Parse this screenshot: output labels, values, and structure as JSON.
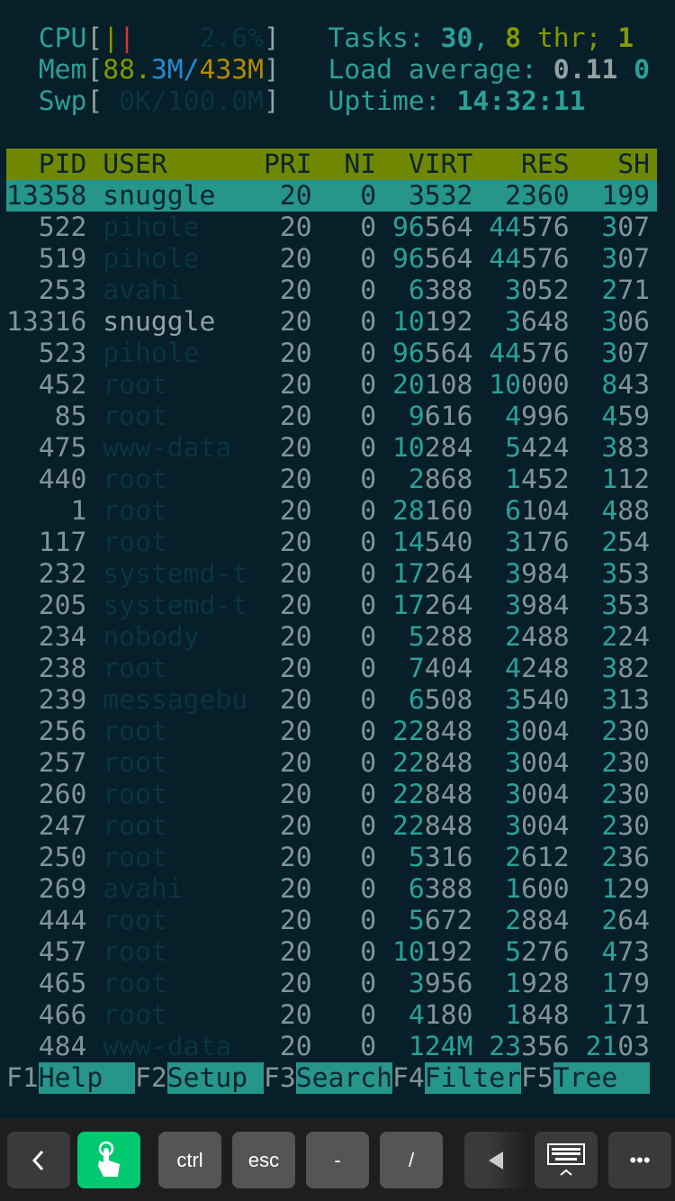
{
  "meters": {
    "cpu": {
      "label": "CPU",
      "bars": [
        "|",
        "|"
      ],
      "value": "2.6%",
      "bar_colors": [
        "#859900",
        "#dc322f"
      ]
    },
    "mem": {
      "label": "Mem",
      "used": "88.",
      "buffers": "3M/",
      "cache": "433M"
    },
    "swp": {
      "label": "Swp",
      "value": " 0K/100.0M"
    },
    "tasks": {
      "label": "Tasks: ",
      "count": "30",
      "sep": ", ",
      "threads": "8",
      "thr_label": " thr; ",
      "running": "1"
    },
    "load": {
      "label": "Load average: ",
      "v1": "0.11",
      "v2": " 0"
    },
    "uptime": {
      "label": "Uptime: ",
      "value": "14:32:11"
    }
  },
  "columns": [
    "PID",
    "USER",
    "PRI",
    "NI",
    "VIRT",
    "RES",
    "SH"
  ],
  "processes": [
    [
      "13358",
      "snuggle",
      "20",
      "0",
      "3532",
      "2360",
      "199"
    ],
    [
      "522",
      "pihole",
      "20",
      "0",
      "96564",
      "44576",
      "307"
    ],
    [
      "519",
      "pihole",
      "20",
      "0",
      "96564",
      "44576",
      "307"
    ],
    [
      "253",
      "avahi",
      "20",
      "0",
      "6388",
      "3052",
      "271"
    ],
    [
      "13316",
      "snuggle",
      "20",
      "0",
      "10192",
      "3648",
      "306"
    ],
    [
      "523",
      "pihole",
      "20",
      "0",
      "96564",
      "44576",
      "307"
    ],
    [
      "452",
      "root",
      "20",
      "0",
      "20108",
      "10000",
      "843"
    ],
    [
      "85",
      "root",
      "20",
      "0",
      "9616",
      "4996",
      "459"
    ],
    [
      "475",
      "www-data",
      "20",
      "0",
      "10284",
      "5424",
      "383"
    ],
    [
      "440",
      "root",
      "20",
      "0",
      "2868",
      "1452",
      "112"
    ],
    [
      "1",
      "root",
      "20",
      "0",
      "28160",
      "6104",
      "488"
    ],
    [
      "117",
      "root",
      "20",
      "0",
      "14540",
      "3176",
      "254"
    ],
    [
      "232",
      "systemd-t",
      "20",
      "0",
      "17264",
      "3984",
      "353"
    ],
    [
      "205",
      "systemd-t",
      "20",
      "0",
      "17264",
      "3984",
      "353"
    ],
    [
      "234",
      "nobody",
      "20",
      "0",
      "5288",
      "2488",
      "224"
    ],
    [
      "238",
      "root",
      "20",
      "0",
      "7404",
      "4248",
      "382"
    ],
    [
      "239",
      "messagebu",
      "20",
      "0",
      "6508",
      "3540",
      "313"
    ],
    [
      "256",
      "root",
      "20",
      "0",
      "22848",
      "3004",
      "230"
    ],
    [
      "257",
      "root",
      "20",
      "0",
      "22848",
      "3004",
      "230"
    ],
    [
      "260",
      "root",
      "20",
      "0",
      "22848",
      "3004",
      "230"
    ],
    [
      "247",
      "root",
      "20",
      "0",
      "22848",
      "3004",
      "230"
    ],
    [
      "250",
      "root",
      "20",
      "0",
      "5316",
      "2612",
      "236"
    ],
    [
      "269",
      "avahi",
      "20",
      "0",
      "6388",
      "1600",
      "129"
    ],
    [
      "444",
      "root",
      "20",
      "0",
      "5672",
      "2884",
      "264"
    ],
    [
      "457",
      "root",
      "20",
      "0",
      "10192",
      "5276",
      "473"
    ],
    [
      "465",
      "root",
      "20",
      "0",
      "3956",
      "1928",
      "179"
    ],
    [
      "466",
      "root",
      "20",
      "0",
      "4180",
      "1848",
      "171"
    ],
    [
      "484",
      "www-data",
      "20",
      "0",
      "124M",
      "23356",
      "2103"
    ]
  ],
  "function_bar": [
    {
      "key": "F1",
      "label": "Help  "
    },
    {
      "key": "F2",
      "label": "Setup "
    },
    {
      "key": "F3",
      "label": "Search"
    },
    {
      "key": "F4",
      "label": "Filter"
    },
    {
      "key": "F5",
      "label": "Tree  "
    }
  ],
  "toolbar": {
    "back_icon": "chevron-left-icon",
    "touch_icon": "hand-pointer-icon",
    "ctrl": "ctrl",
    "esc": "esc",
    "dash": "-",
    "slash": "/",
    "left_icon": "triangle-left-icon",
    "keyboard_icon": "keyboard-icon",
    "more": "•••",
    "accent": "#00c96f"
  }
}
